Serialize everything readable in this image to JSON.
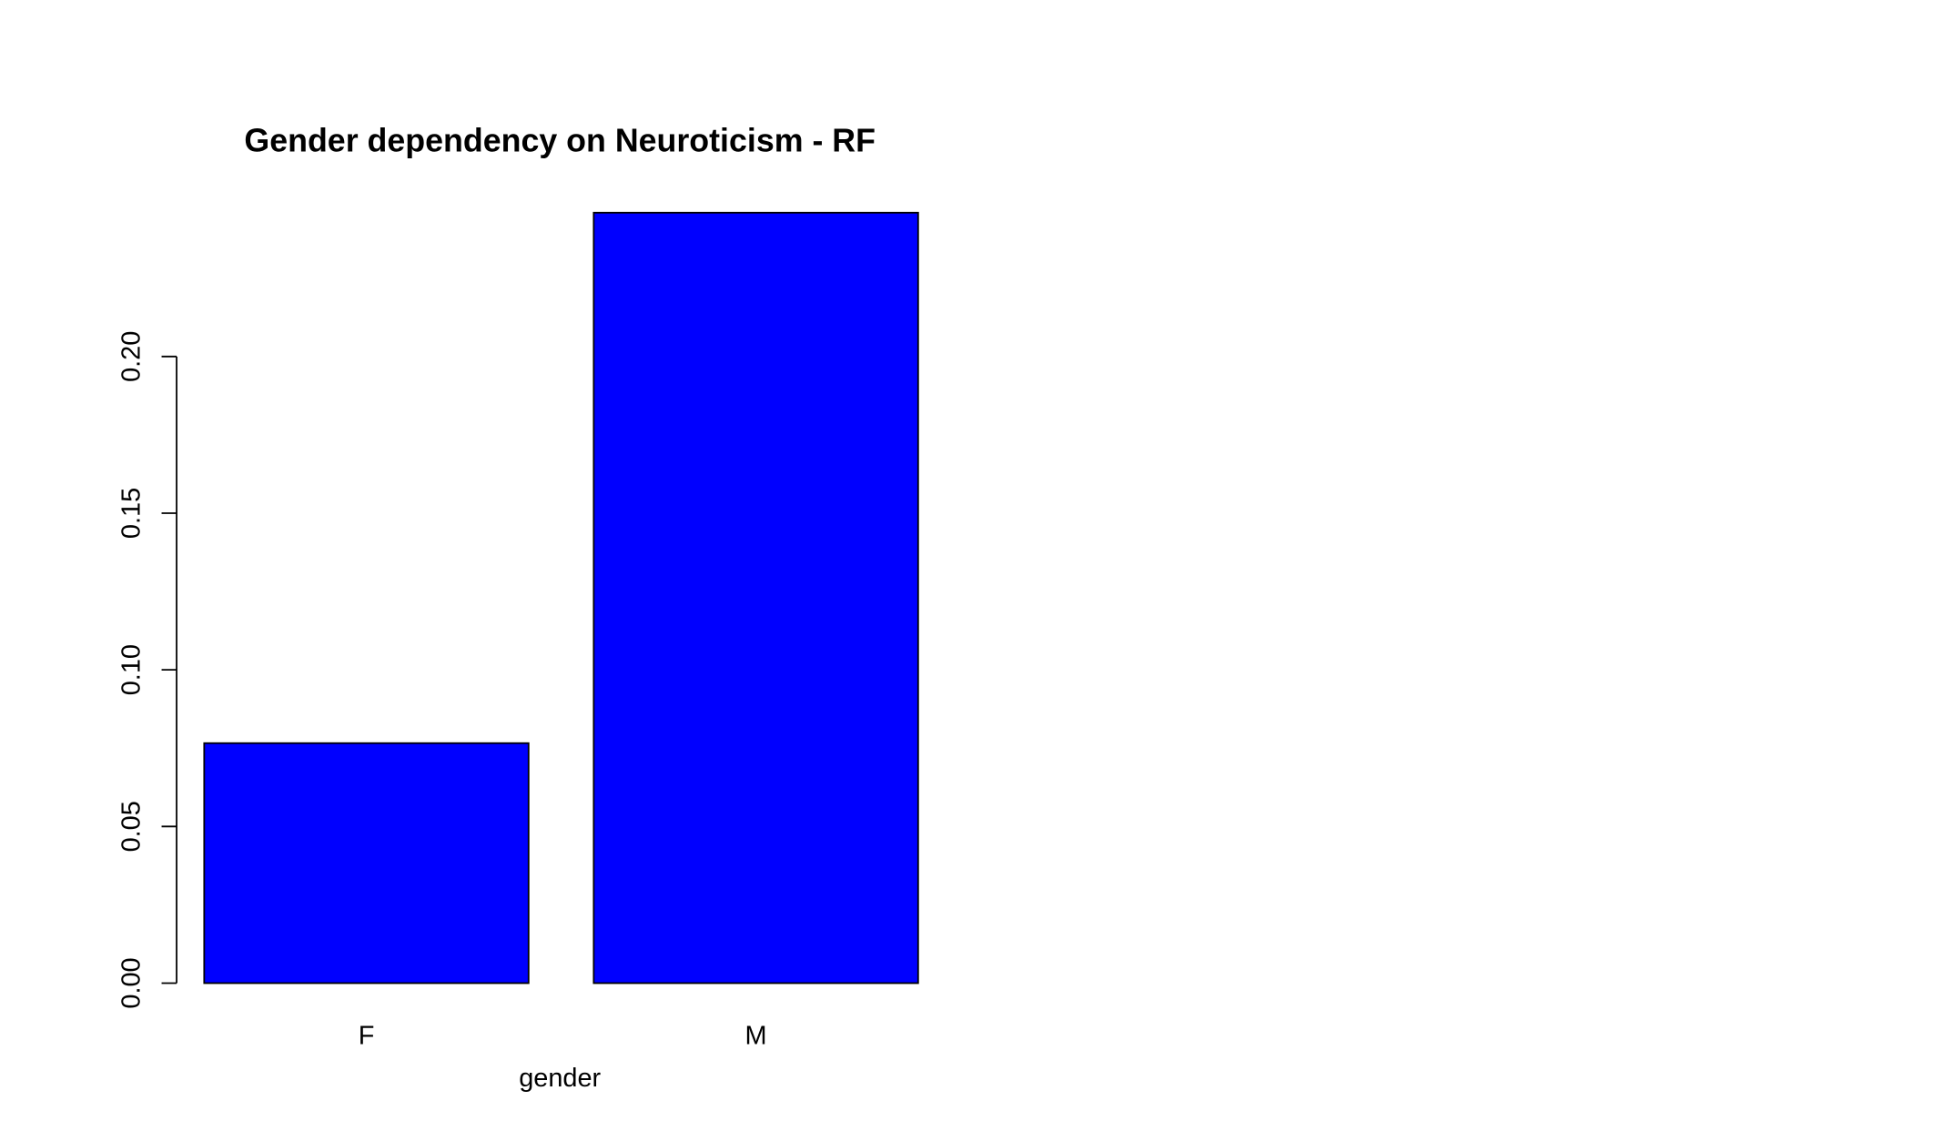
{
  "chart_data": {
    "type": "bar",
    "title": "Gender dependency on Neuroticism - RF",
    "x_label": "gender",
    "categories": [
      "F",
      "M"
    ],
    "values": [
      0.0766,
      0.2459
    ],
    "color": "#0000ff",
    "ylim": [
      0,
      0.256
    ],
    "yticks": [
      {
        "value": 0,
        "label": "0.00"
      },
      {
        "value": 0.05,
        "label": "0.05"
      },
      {
        "value": 0.1,
        "label": "0.10"
      },
      {
        "value": 0.15,
        "label": "0.15"
      },
      {
        "value": 0.2,
        "label": "0.20"
      }
    ],
    "grid": false
  }
}
